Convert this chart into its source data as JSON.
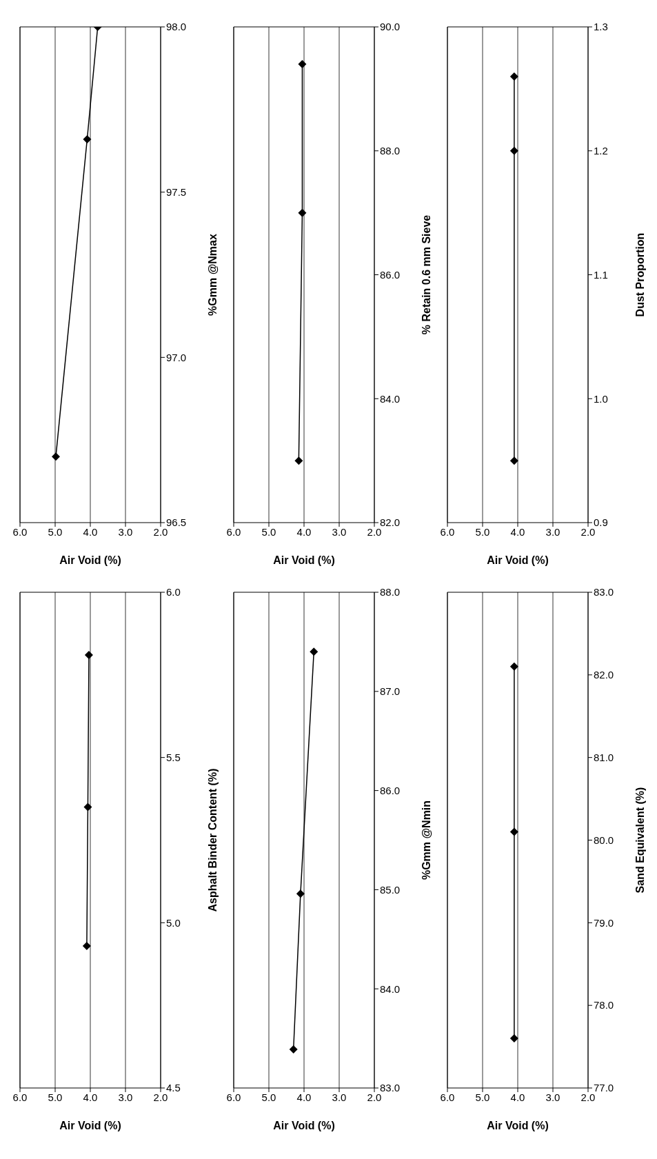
{
  "chart_data": [
    {
      "type": "line",
      "xlabel": "Air Void (%)",
      "ylabel": "%Gmm @Nmax",
      "marker": "diamond",
      "grid": "x",
      "xlim": [
        6,
        2
      ],
      "xticks": [
        {
          "value": 6,
          "label": "6.0"
        },
        {
          "value": 5,
          "label": "5.0"
        },
        {
          "value": 4,
          "label": "4.0"
        },
        {
          "value": 3,
          "label": "3.0"
        },
        {
          "value": 2,
          "label": "2.0"
        }
      ],
      "ylim": [
        96.5,
        98.0
      ],
      "yticks": [
        96.5,
        {
          "value": 97,
          "label": "97.0"
        },
        97.5,
        {
          "value": 98,
          "label": "98.0"
        }
      ],
      "series": [
        {
          "color": "#000000",
          "x": [
            4.98,
            4.09,
            3.79
          ],
          "values": [
            96.7,
            97.66,
            98.0
          ]
        }
      ]
    },
    {
      "type": "line",
      "xlabel": "Air Void (%)",
      "ylabel": "% Retain 0.6 mm Sieve",
      "marker": "diamond",
      "grid": "x",
      "xlim": [
        6,
        2
      ],
      "xticks": [
        {
          "value": 6,
          "label": "6.0"
        },
        {
          "value": 5,
          "label": "5.0"
        },
        {
          "value": 4,
          "label": "4.0"
        },
        {
          "value": 3,
          "label": "3.0"
        },
        {
          "value": 2,
          "label": "2.0"
        }
      ],
      "ylim": [
        82,
        90
      ],
      "yticks": [
        {
          "value": 82,
          "label": "82.0"
        },
        {
          "value": 84,
          "label": "84.0"
        },
        {
          "value": 86,
          "label": "86.0"
        },
        {
          "value": 88,
          "label": "88.0"
        },
        {
          "value": 90,
          "label": "90.0"
        }
      ],
      "series": [
        {
          "color": "#000000",
          "x": [
            4.15,
            4.05,
            4.05
          ],
          "values": [
            83.0,
            87.0,
            89.4
          ]
        }
      ]
    },
    {
      "type": "line",
      "xlabel": "Air Void (%)",
      "ylabel": "Dust Proportion",
      "marker": "diamond",
      "grid": "x",
      "xlim": [
        6,
        2
      ],
      "xticks": [
        {
          "value": 6,
          "label": "6.0"
        },
        {
          "value": 5,
          "label": "5.0"
        },
        {
          "value": 4,
          "label": "4.0"
        },
        {
          "value": 3,
          "label": "3.0"
        },
        {
          "value": 2,
          "label": "2.0"
        }
      ],
      "ylim": [
        0.9,
        1.3
      ],
      "yticks": [
        0.9,
        {
          "value": 1,
          "label": "1.0"
        },
        1.1,
        1.2,
        1.3
      ],
      "series": [
        {
          "color": "#000000",
          "x": [
            4.1,
            4.1,
            4.1
          ],
          "values": [
            0.95,
            1.2,
            1.26
          ]
        }
      ]
    },
    {
      "type": "line",
      "xlabel": "Air Void (%)",
      "ylabel": "Asphalt Binder Content (%)",
      "marker": "diamond",
      "grid": "x",
      "xlim": [
        6,
        2
      ],
      "xticks": [
        {
          "value": 6,
          "label": "6.0"
        },
        {
          "value": 5,
          "label": "5.0"
        },
        {
          "value": 4,
          "label": "4.0"
        },
        {
          "value": 3,
          "label": "3.0"
        },
        {
          "value": 2,
          "label": "2.0"
        }
      ],
      "ylim": [
        4.5,
        6.0
      ],
      "yticks": [
        4.5,
        {
          "value": 5,
          "label": "5.0"
        },
        5.5,
        {
          "value": 6,
          "label": "6.0"
        }
      ],
      "series": [
        {
          "color": "#000000",
          "x": [
            4.1,
            4.07,
            4.04
          ],
          "values": [
            4.93,
            5.35,
            5.81
          ]
        }
      ]
    },
    {
      "type": "line",
      "xlabel": "Air Void (%)",
      "ylabel": "%Gmm @Nmin",
      "marker": "diamond",
      "grid": "x",
      "xlim": [
        6,
        2
      ],
      "xticks": [
        {
          "value": 6,
          "label": "6.0"
        },
        {
          "value": 5,
          "label": "5.0"
        },
        {
          "value": 4,
          "label": "4.0"
        },
        {
          "value": 3,
          "label": "3.0"
        },
        {
          "value": 2,
          "label": "2.0"
        }
      ],
      "ylim": [
        83,
        88
      ],
      "yticks": [
        {
          "value": 83,
          "label": "83.0"
        },
        {
          "value": 84,
          "label": "84.0"
        },
        {
          "value": 85,
          "label": "85.0"
        },
        {
          "value": 86,
          "label": "86.0"
        },
        {
          "value": 87,
          "label": "87.0"
        },
        {
          "value": 88,
          "label": "88.0"
        }
      ],
      "series": [
        {
          "color": "#000000",
          "x": [
            4.3,
            4.1,
            3.72
          ],
          "values": [
            83.39,
            84.96,
            87.4
          ]
        }
      ]
    },
    {
      "type": "line",
      "xlabel": "Air Void (%)",
      "ylabel": "Sand Equivalent (%)",
      "marker": "diamond",
      "grid": "x",
      "xlim": [
        6,
        2
      ],
      "xticks": [
        {
          "value": 6,
          "label": "6.0"
        },
        {
          "value": 5,
          "label": "5.0"
        },
        {
          "value": 4,
          "label": "4.0"
        },
        {
          "value": 3,
          "label": "3.0"
        },
        {
          "value": 2,
          "label": "2.0"
        }
      ],
      "ylim": [
        77,
        83
      ],
      "yticks": [
        {
          "value": 77,
          "label": "77.0"
        },
        {
          "value": 78,
          "label": "78.0"
        },
        {
          "value": 79,
          "label": "79.0"
        },
        {
          "value": 80,
          "label": "80.0"
        },
        {
          "value": 81,
          "label": "81.0"
        },
        {
          "value": 82,
          "label": "82.0"
        },
        {
          "value": 83,
          "label": "83.0"
        }
      ],
      "series": [
        {
          "color": "#000000",
          "x": [
            4.1,
            4.1,
            4.1
          ],
          "values": [
            77.6,
            80.1,
            82.1
          ]
        }
      ]
    }
  ]
}
